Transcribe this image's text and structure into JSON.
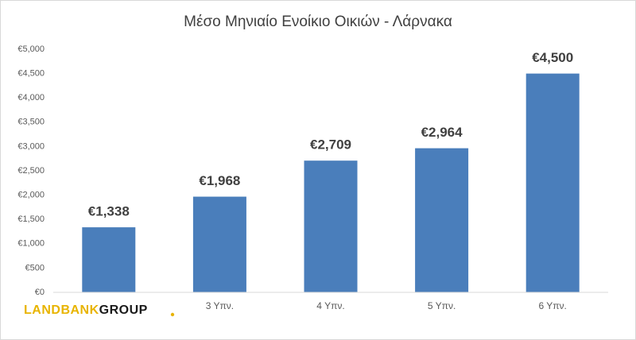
{
  "chart_data": {
    "type": "bar",
    "title": "Μέσο Μηνιαίο Ενοίκιο Οικιών - Λάρνακα",
    "categories": [
      null,
      "3 Υπν.",
      "4 Υπν.",
      "5 Υπν.",
      "6 Υπν."
    ],
    "values": [
      1338,
      1968,
      2709,
      2964,
      4500
    ],
    "value_labels": [
      "€1,338",
      "€1,968",
      "€2,709",
      "€2,964",
      "€4,500"
    ],
    "color": "#4a7ebb",
    "ylim": [
      0,
      5000
    ],
    "yticks": [
      {
        "value": 0,
        "label": "€0"
      },
      {
        "value": 500,
        "label": "€500"
      },
      {
        "value": 1000,
        "label": "€1,000"
      },
      {
        "value": 1500,
        "label": "€1,500"
      },
      {
        "value": 2000,
        "label": "€2,000"
      },
      {
        "value": 2500,
        "label": "€2,500"
      },
      {
        "value": 3000,
        "label": "€3,000"
      },
      {
        "value": 3500,
        "label": "€3,500"
      },
      {
        "value": 4000,
        "label": "€4,000"
      },
      {
        "value": 4500,
        "label": "€4,500"
      },
      {
        "value": 5000,
        "label": "€5,000"
      }
    ],
    "grid": false,
    "logo": [
      "LANDBANK",
      "GROUP"
    ]
  }
}
